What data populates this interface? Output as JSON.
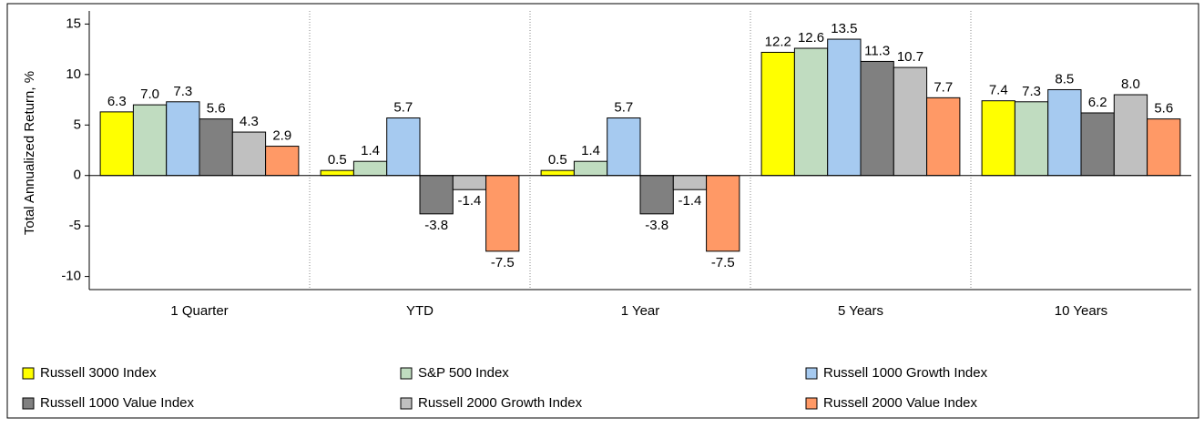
{
  "chart_data": {
    "type": "bar",
    "y_label": "Total Annualized Return, %",
    "categories": [
      "1 Quarter",
      "YTD",
      "1 Year",
      "5 Years",
      "10 Years"
    ],
    "series": [
      {
        "name": "Russell 3000 Index",
        "color": "#ffff00",
        "values": [
          6.3,
          0.5,
          0.5,
          12.2,
          7.4
        ],
        "value_labels": [
          "6.3",
          "0.5",
          "0.5",
          "12.2",
          "7.4"
        ]
      },
      {
        "name": "S&P 500 Index",
        "color": "#c0dcc0",
        "values": [
          7.0,
          1.4,
          1.4,
          12.6,
          7.3
        ],
        "value_labels": [
          "7.0",
          "1.4",
          "1.4",
          "12.6",
          "7.3"
        ]
      },
      {
        "name": "Russell 1000 Growth Index",
        "color": "#a6caf0",
        "values": [
          7.3,
          5.7,
          5.7,
          13.5,
          8.5
        ],
        "value_labels": [
          "7.3",
          "5.7",
          "5.7",
          "13.5",
          "8.5"
        ]
      },
      {
        "name": "Russell 1000 Value Index",
        "color": "#808080",
        "values": [
          5.6,
          -3.8,
          -3.8,
          11.3,
          6.2
        ],
        "value_labels": [
          "5.6",
          "-3.8",
          "-3.8",
          "11.3",
          "6.2"
        ]
      },
      {
        "name": "Russell 2000 Growth Index",
        "color": "#c0c0c0",
        "values": [
          4.3,
          -1.4,
          -1.4,
          10.7,
          8.0
        ],
        "value_labels": [
          "4.3",
          "-1.4",
          "-1.4",
          "10.7",
          "8.0"
        ]
      },
      {
        "name": "Russell 2000 Value Index",
        "color": "#ff9966",
        "values": [
          2.9,
          -7.5,
          -7.5,
          7.7,
          5.6
        ],
        "value_labels": [
          "2.9",
          "-7.5",
          "-7.5",
          "7.7",
          "5.6"
        ]
      }
    ],
    "ylim": [
      -11.3,
      16.3
    ],
    "yticks": [
      15,
      10,
      5,
      0,
      -5,
      -10
    ],
    "legend": "bottom"
  }
}
